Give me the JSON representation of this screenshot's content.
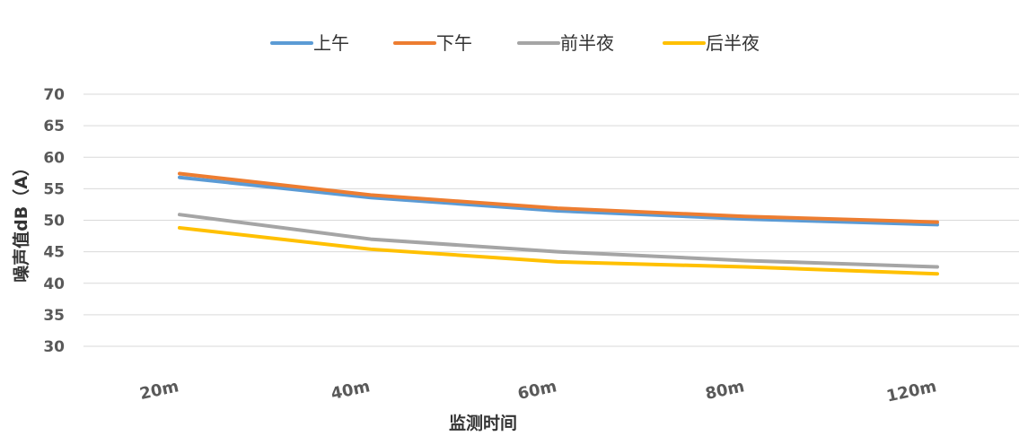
{
  "chart_data": {
    "type": "line",
    "title": "",
    "xlabel": "监测时间",
    "ylabel": "噪声值dB（A）",
    "categories": [
      "20m",
      "40m",
      "60m",
      "80m",
      "120m"
    ],
    "ylim": [
      30,
      70
    ],
    "yticks": [
      30,
      35,
      40,
      45,
      50,
      55,
      60,
      65,
      70
    ],
    "grid": true,
    "legend_position": "top",
    "series": [
      {
        "name": "上午",
        "color": "#5b9bd5",
        "values": [
          56.8,
          53.6,
          51.5,
          50.2,
          49.3
        ]
      },
      {
        "name": "下午",
        "color": "#ed7d31",
        "values": [
          57.4,
          54.0,
          51.9,
          50.6,
          49.7
        ]
      },
      {
        "name": "前半夜",
        "color": "#a5a5a5",
        "values": [
          50.9,
          47.0,
          45.0,
          43.6,
          42.6
        ]
      },
      {
        "name": "后半夜",
        "color": "#ffc000",
        "values": [
          48.8,
          45.4,
          43.4,
          42.6,
          41.5
        ]
      }
    ]
  }
}
